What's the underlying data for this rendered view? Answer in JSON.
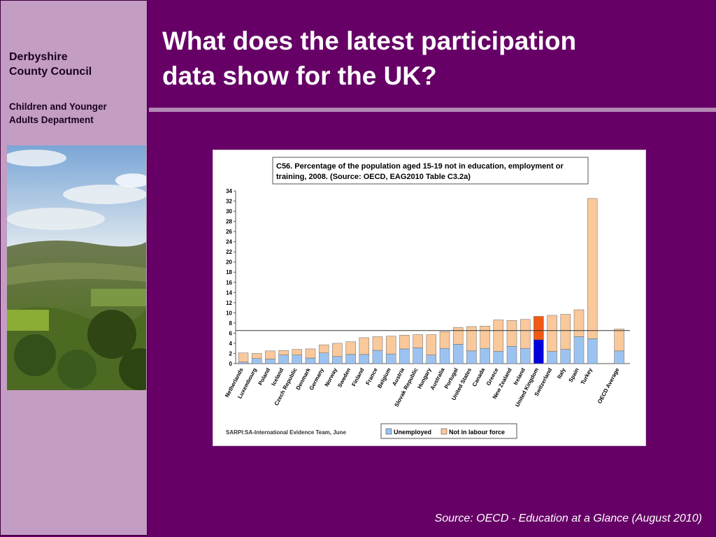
{
  "sidebar": {
    "org_name_line1": "Derbyshire",
    "org_name_line2": "County Council",
    "dept_line1": "Children and Younger",
    "dept_line2": "Adults Department"
  },
  "slide": {
    "title_line1": "What does the latest participation",
    "title_line2": "data show for the UK?",
    "source": "Source: OECD - Education at a Glance (August 2010)"
  },
  "colors": {
    "background": "#660066",
    "sidebar": "#c49dc4",
    "unemployed": "#9cc3f0",
    "not_in_labour_force": "#f9c89b",
    "uk_unemployed": "#0000dd",
    "uk_not_in_labour_force": "#f05a14"
  },
  "chart_data": {
    "type": "bar",
    "stacked": true,
    "title_line1": "C56. Percentage of the population aged 15-19 not in education, employment or",
    "title_line2": "training, 2008. (Source: OECD, EAG2010 Table C3.2a)",
    "footnote": "SARPI:SA-International Evidence Team, June",
    "ylim": [
      0,
      34
    ],
    "yticks": [
      0,
      2,
      4,
      6,
      8,
      10,
      12,
      14,
      16,
      18,
      20,
      22,
      24,
      26,
      28,
      30,
      32,
      34
    ],
    "reference_line": 6.5,
    "highlight": "United Kingdom",
    "legend_position": "bottom",
    "categories": [
      "Netherlands",
      "Luxembourg",
      "Poland",
      "Iceland",
      "Czech Republic",
      "Denmark",
      "Germany",
      "Norway",
      "Sweden",
      "Finland",
      "France",
      "Belgium",
      "Austria",
      "Slovak Republic",
      "Hungary",
      "Australia",
      "Portugal",
      "United States",
      "Canada",
      "Greece",
      "New Zealand",
      "Ireland",
      "United Kingdom",
      "Switzerland",
      "Italy",
      "Spain",
      "Turkey",
      "OECD Average"
    ],
    "series": [
      {
        "name": "Unemployed",
        "values": [
          0.3,
          1.0,
          0.9,
          1.7,
          1.7,
          1.1,
          2.1,
          1.4,
          1.8,
          1.8,
          2.6,
          1.9,
          2.9,
          3.1,
          1.7,
          3.0,
          3.8,
          2.5,
          3.0,
          2.4,
          3.4,
          3.0,
          4.7,
          2.4,
          2.8,
          5.3,
          4.9,
          2.5
        ]
      },
      {
        "name": "Not in labour force",
        "values": [
          1.8,
          1.0,
          1.6,
          0.9,
          1.1,
          1.8,
          1.6,
          2.6,
          2.5,
          3.3,
          2.7,
          3.5,
          2.7,
          2.6,
          4.0,
          3.3,
          3.3,
          4.8,
          4.4,
          6.2,
          5.1,
          5.7,
          4.6,
          7.1,
          6.9,
          5.3,
          27.6,
          4.3
        ]
      }
    ]
  }
}
